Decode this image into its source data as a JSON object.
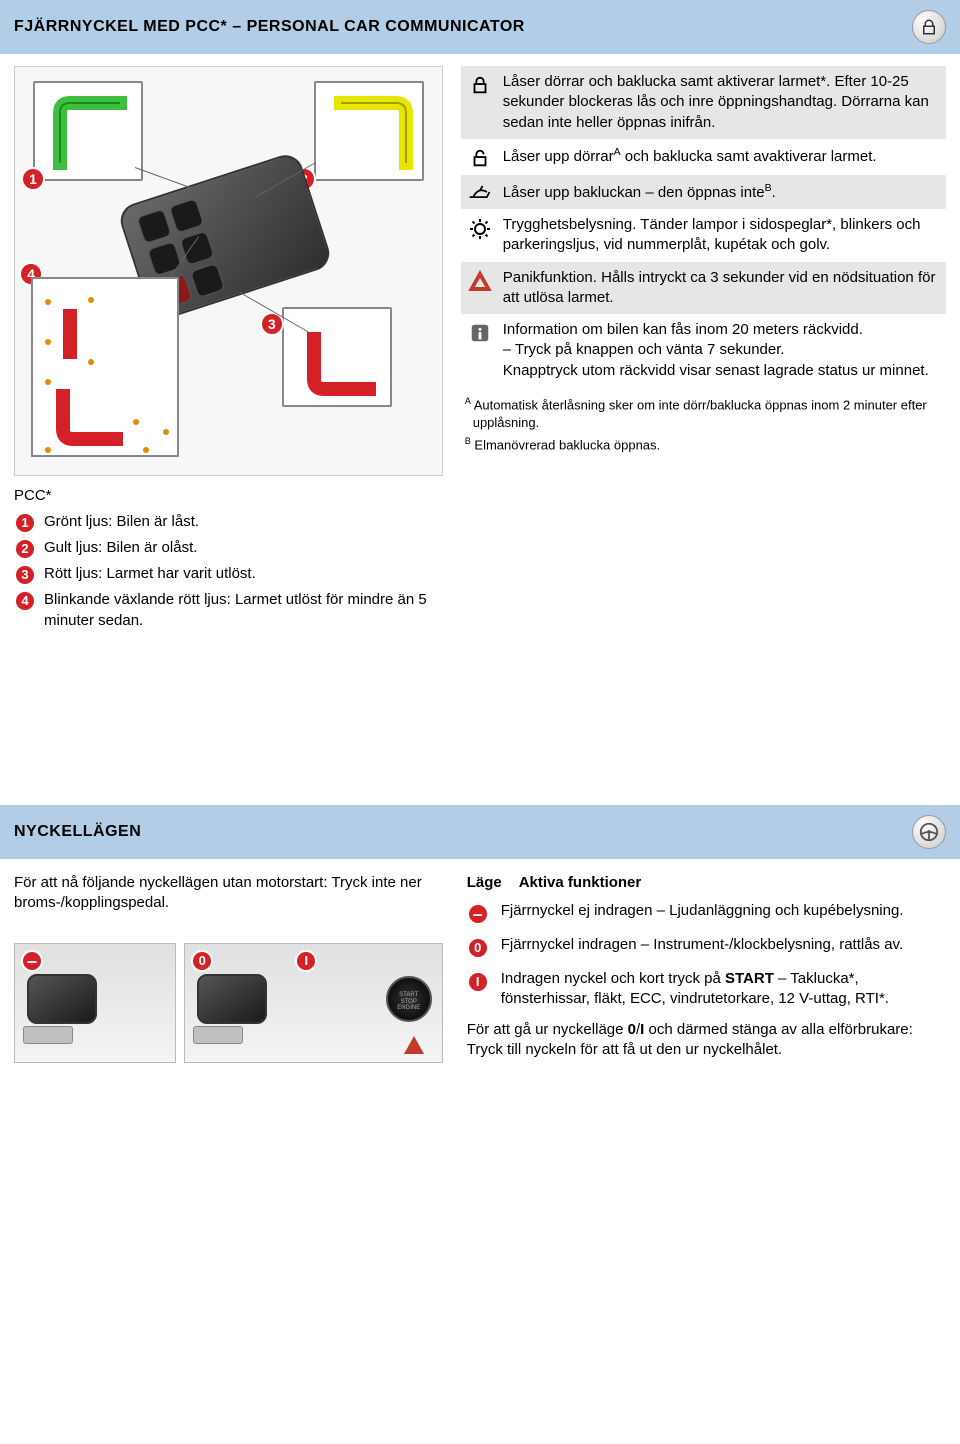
{
  "section1": {
    "title": "FJÄRRNYCKEL MED PCC* – PERSONAL CAR COMMUNICATOR",
    "header_icon": "lock-icon",
    "colors": {
      "header_bg": "#b4cde6",
      "badge_bg": "#d42027",
      "shade_bg": "#e6e6e6"
    },
    "diagram": {
      "callouts": [
        {
          "num": "1",
          "shape_color": "#3fbf3f",
          "pos": "top-left"
        },
        {
          "num": "2",
          "shape_color": "#e6e600",
          "pos": "top-right"
        },
        {
          "num": "3",
          "shape_color": "#d42027",
          "pos": "mid-right"
        }
      ],
      "panel_num": "4",
      "indicator_color_primary": "#d42027",
      "indicator_color_dots": "#e68a00"
    },
    "pcc_label": "PCC*",
    "legend": [
      {
        "num": "1",
        "text": "Grönt ljus: Bilen är låst."
      },
      {
        "num": "2",
        "text": "Gult ljus: Bilen är olåst."
      },
      {
        "num": "3",
        "text": "Rött ljus: Larmet har varit utlöst."
      },
      {
        "num": "4",
        "text": "Blinkande växlande rött ljus: Larmet utlöst för mindre än 5 minuter sedan."
      }
    ],
    "functions": [
      {
        "icon": "lock-closed",
        "shaded": true,
        "text": "Låser dörrar och baklucka samt aktiverar larmet*. Efter 10-25 sekunder blockeras lås och inre öppningshandtag. Dörrarna kan sedan inte heller öppnas inifrån."
      },
      {
        "icon": "lock-open",
        "shaded": false,
        "text_html": "Låser upp dörrar<sup>A</sup> och baklucka samt avaktiverar larmet."
      },
      {
        "icon": "trunk",
        "shaded": true,
        "text_html": "Låser upp bakluckan – den öppnas inte<sup>B</sup>."
      },
      {
        "icon": "light",
        "shaded": false,
        "text": "Trygghetsbelysning. Tänder lampor i sidospeglar*, blinkers och parkeringsljus, vid nummerplåt, kupétak och golv."
      },
      {
        "icon": "panic",
        "shaded": true,
        "text": "Panikfunktion. Hålls intryckt ca 3 sekunder vid en nödsituation för att utlösa larmet."
      },
      {
        "icon": "info",
        "shaded": false,
        "text_html": "Information om bilen kan fås inom 20 meters räckvidd.<br>– Tryck på knappen och vänta 7 sekunder.<br>Knapptryck utom räckvidd visar senast lagrade status ur minnet."
      }
    ],
    "footnotes": {
      "a": "Automatisk återlåsning sker om inte dörr/baklucka öppnas inom 2 minuter efter upplåsning.",
      "b": "Elmanövrerad baklucka öppnas."
    }
  },
  "section2": {
    "title": "NYCKELLÄGEN",
    "header_icon": "steering-wheel-icon",
    "intro": "För att nå följande nyckellägen utan motorstart: Tryck inte ner broms-/kopplingspedal.",
    "slot_badges": {
      "minus": "–",
      "zero": "0",
      "one": "I"
    },
    "start_label": "START\nSTOP\nENGINE",
    "table_header": {
      "col1": "Läge",
      "col2": "Aktiva funktioner"
    },
    "modes": [
      {
        "badge": "–",
        "badge_class": "minus",
        "text": "Fjärrnyckel ej indragen – Ljudanläggning och kupébelysning."
      },
      {
        "badge": "0",
        "badge_class": "",
        "text": "Fjärrnyckel indragen – Instrument-/klockbelysning, rattlås av."
      },
      {
        "badge": "I",
        "badge_class": "",
        "text_html": "Indragen nyckel och kort tryck på <b>START</b> – Taklucka*, fönsterhissar, fläkt, ECC, vindrutetorkare, 12 V-uttag, RTI*."
      }
    ],
    "closing_html": "För att gå ur nyckelläge <b>0</b>/<b>I</b> och därmed stänga av alla elförbrukare: Tryck till nyckeln för att få ut den ur nyckelhålet."
  }
}
